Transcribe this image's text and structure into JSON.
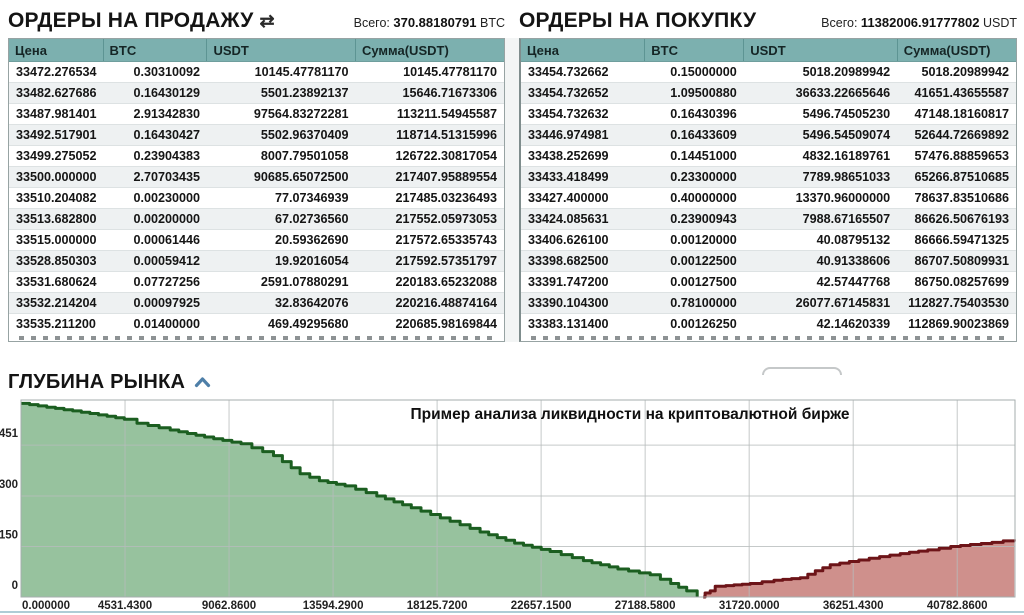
{
  "icons": {
    "swap": "⇄"
  },
  "colors": {
    "table_header_bg": "#7cb0af",
    "caret_blue": "#4e7fa8",
    "bottom_line": "#aecdd6"
  },
  "sell_orders": {
    "title": "ОРДЕРЫ НА ПРОДАЖУ",
    "total_label": "Всего:",
    "total_value": "370.88180791",
    "total_unit": "BTC",
    "columns": [
      "Цена",
      "BTC",
      "USDT",
      "Сумма(USDT)"
    ],
    "rows": [
      [
        "33472.276534",
        "0.30310092",
        "10145.47781170",
        "10145.47781170"
      ],
      [
        "33482.627686",
        "0.16430129",
        "5501.23892137",
        "15646.71673306"
      ],
      [
        "33487.981401",
        "2.91342830",
        "97564.83272281",
        "113211.54945587"
      ],
      [
        "33492.517901",
        "0.16430427",
        "5502.96370409",
        "118714.51315996"
      ],
      [
        "33499.275052",
        "0.23904383",
        "8007.79501058",
        "126722.30817054"
      ],
      [
        "33500.000000",
        "2.70703435",
        "90685.65072500",
        "217407.95889554"
      ],
      [
        "33510.204082",
        "0.00230000",
        "77.07346939",
        "217485.03236493"
      ],
      [
        "33513.682800",
        "0.00200000",
        "67.02736560",
        "217552.05973053"
      ],
      [
        "33515.000000",
        "0.00061446",
        "20.59362690",
        "217572.65335743"
      ],
      [
        "33528.850303",
        "0.00059412",
        "19.92016054",
        "217592.57351797"
      ],
      [
        "33531.680624",
        "0.07727256",
        "2591.07880291",
        "220183.65232088"
      ],
      [
        "33532.214204",
        "0.00097925",
        "32.83642076",
        "220216.48874164"
      ],
      [
        "33535.211200",
        "0.01400000",
        "469.49295680",
        "220685.98169844"
      ]
    ]
  },
  "buy_orders": {
    "title": "ОРДЕРЫ НА ПОКУПКУ",
    "total_label": "Всего:",
    "total_value": "11382006.91777802",
    "total_unit": "USDT",
    "columns": [
      "Цена",
      "BTC",
      "USDT",
      "Сумма(USDT)"
    ],
    "rows": [
      [
        "33454.732662",
        "0.15000000",
        "5018.20989942",
        "5018.20989942"
      ],
      [
        "33454.732652",
        "1.09500880",
        "36633.22665646",
        "41651.43655587"
      ],
      [
        "33454.732632",
        "0.16430396",
        "5496.74505230",
        "47148.18160817"
      ],
      [
        "33446.974981",
        "0.16433609",
        "5496.54509074",
        "52644.72669892"
      ],
      [
        "33438.252699",
        "0.14451000",
        "4832.16189761",
        "57476.88859653"
      ],
      [
        "33433.418499",
        "0.23300000",
        "7789.98651033",
        "65266.87510685"
      ],
      [
        "33427.400000",
        "0.40000000",
        "13370.96000000",
        "78637.83510686"
      ],
      [
        "33424.085631",
        "0.23900943",
        "7988.67165507",
        "86626.50676193"
      ],
      [
        "33406.626100",
        "0.00120000",
        "40.08795132",
        "86666.59471325"
      ],
      [
        "33398.682500",
        "0.00122500",
        "40.91338606",
        "86707.50809931"
      ],
      [
        "33391.747200",
        "0.00127500",
        "42.57447768",
        "86750.08257699"
      ],
      [
        "33390.104300",
        "0.78100000",
        "26077.67145831",
        "112827.75403530"
      ],
      [
        "33383.131400",
        "0.00126250",
        "42.14620339",
        "112869.90023869"
      ]
    ]
  },
  "market_depth": {
    "title": "ГЛУБИНА РЫНКА"
  },
  "chart_data": {
    "type": "area",
    "title": "Пример анализа ликвидности на криптовалютной бирже",
    "xlabel": "",
    "ylabel": "",
    "grid": true,
    "legend": "none",
    "xlim": [
      0,
      43300
    ],
    "ylim": [
      0,
      585
    ],
    "x_ticks": [
      "0.000000",
      "4531.4300",
      "9062.8600",
      "13594.2900",
      "18125.7200",
      "22657.1500",
      "27188.5800",
      "31720.0000",
      "36251.4300",
      "40782.8600"
    ],
    "x_tick_values": [
      0,
      4531.43,
      9062.86,
      13594.29,
      18125.72,
      22657.15,
      27188.58,
      31720.0,
      36251.43,
      40782.86
    ],
    "y_ticks": [
      "0",
      "150",
      "300",
      "451"
    ],
    "y_tick_values": [
      0,
      150,
      300,
      451
    ],
    "series": [
      {
        "name": "sell-depth-cumulative",
        "color_line": "#1b5e20",
        "color_fill": "#97c29e",
        "points": [
          [
            0,
            575
          ],
          [
            1500,
            560
          ],
          [
            3000,
            545
          ],
          [
            4500,
            528
          ],
          [
            5054,
            516
          ],
          [
            6500,
            496
          ],
          [
            8000,
            475
          ],
          [
            9585,
            455
          ],
          [
            11000,
            420
          ],
          [
            12157,
            366
          ],
          [
            13000,
            345
          ],
          [
            14117,
            330
          ],
          [
            15500,
            300
          ],
          [
            17000,
            265
          ],
          [
            18692,
            225
          ],
          [
            20000,
            193
          ],
          [
            21500,
            160
          ],
          [
            23050,
            135
          ],
          [
            24500,
            108
          ],
          [
            26000,
            83
          ],
          [
            27407,
            66
          ],
          [
            28300,
            40
          ],
          [
            29000,
            18
          ],
          [
            29455,
            0
          ]
        ]
      },
      {
        "name": "buy-depth-cumulative",
        "color_line": "#6d1418",
        "color_fill": "#cf908c",
        "points": [
          [
            29717,
            0
          ],
          [
            29800,
            12
          ],
          [
            30022,
            18
          ],
          [
            30240,
            32
          ],
          [
            30700,
            34
          ],
          [
            31765,
            40
          ],
          [
            32800,
            50
          ],
          [
            33944,
            57
          ],
          [
            34600,
            78
          ],
          [
            35251,
            96
          ],
          [
            36500,
            110
          ],
          [
            37400,
            120
          ],
          [
            38301,
            129
          ],
          [
            39500,
            140
          ],
          [
            40500,
            150
          ],
          [
            41352,
            156
          ],
          [
            42300,
            162
          ],
          [
            43270,
            171
          ]
        ]
      }
    ]
  }
}
